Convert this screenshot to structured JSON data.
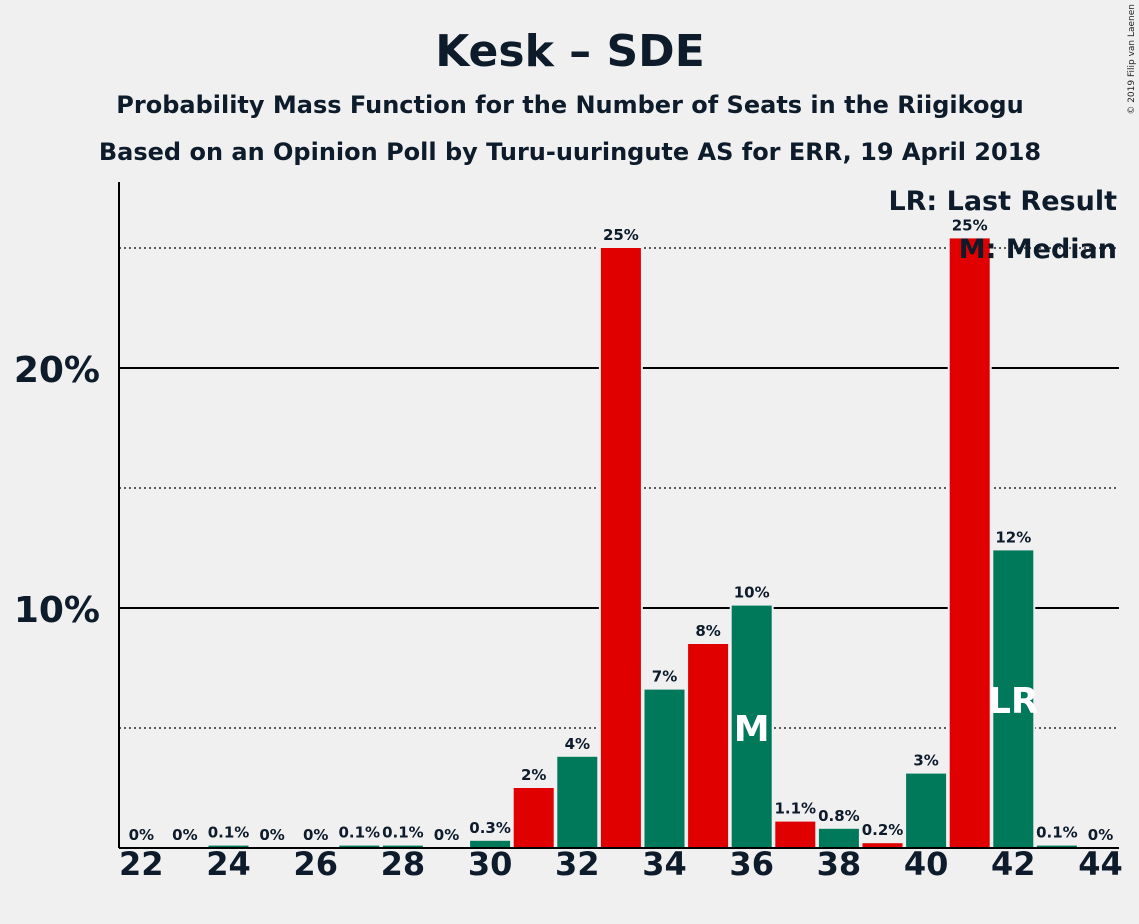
{
  "chart_data": {
    "type": "bar",
    "title": "Kesk – SDE",
    "subtitle": "Probability Mass Function for the Number of Seats in the Riigikogu",
    "subtitle2": "Based on an Opinion Poll by Turu-uuringute AS for ERR, 19 April 2018",
    "copyright": "© 2019 Filip van Laenen",
    "legend": {
      "lr": "LR: Last Result",
      "m": "M: Median",
      "placement": "top-right"
    },
    "ylim": [
      0,
      27.5
    ],
    "y_ticks": [
      {
        "value": 10,
        "label": "10%"
      },
      {
        "value": 20,
        "label": "20%"
      }
    ],
    "y_minor_ticks": [
      5,
      15,
      25
    ],
    "x_tick_labels": [
      "22",
      "24",
      "26",
      "28",
      "30",
      "32",
      "34",
      "36",
      "38",
      "40",
      "42",
      "44"
    ],
    "x_tick_values": [
      22,
      24,
      26,
      28,
      30,
      32,
      34,
      36,
      38,
      40,
      42,
      44
    ],
    "categories": [
      22,
      23,
      24,
      25,
      26,
      27,
      28,
      29,
      30,
      31,
      32,
      33,
      34,
      35,
      36,
      37,
      38,
      39,
      40,
      41,
      42,
      43,
      44
    ],
    "values": [
      0,
      0,
      0.1,
      0,
      0,
      0.1,
      0.1,
      0,
      0.3,
      2.5,
      3.8,
      25,
      6.6,
      8.5,
      10.1,
      1.1,
      0.8,
      0.2,
      3.1,
      25.4,
      12.4,
      0.1,
      0
    ],
    "value_labels": [
      "0%",
      "0%",
      "0.1%",
      "0%",
      "0%",
      "0.1%",
      "0.1%",
      "0%",
      "0.3%",
      "2%",
      "4%",
      "25%",
      "7%",
      "8%",
      "10%",
      "1.1%",
      "0.8%",
      "0.2%",
      "3%",
      "25%",
      "12%",
      "0.1%",
      "0%"
    ],
    "colors": {
      "red": "#e00000",
      "green": "#00785a",
      "axis": "#000000",
      "text": "#0d1b2a"
    },
    "bar_colors": [
      "red",
      "green",
      "green",
      "green",
      "green",
      "green",
      "green",
      "red",
      "green",
      "red",
      "green",
      "red",
      "green",
      "red",
      "green",
      "red",
      "green",
      "red",
      "green",
      "red",
      "green",
      "green",
      "green"
    ],
    "median_seat": 36,
    "median_marker": "M",
    "last_result_seat": 42,
    "last_result_marker": "LR",
    "grid": true
  }
}
